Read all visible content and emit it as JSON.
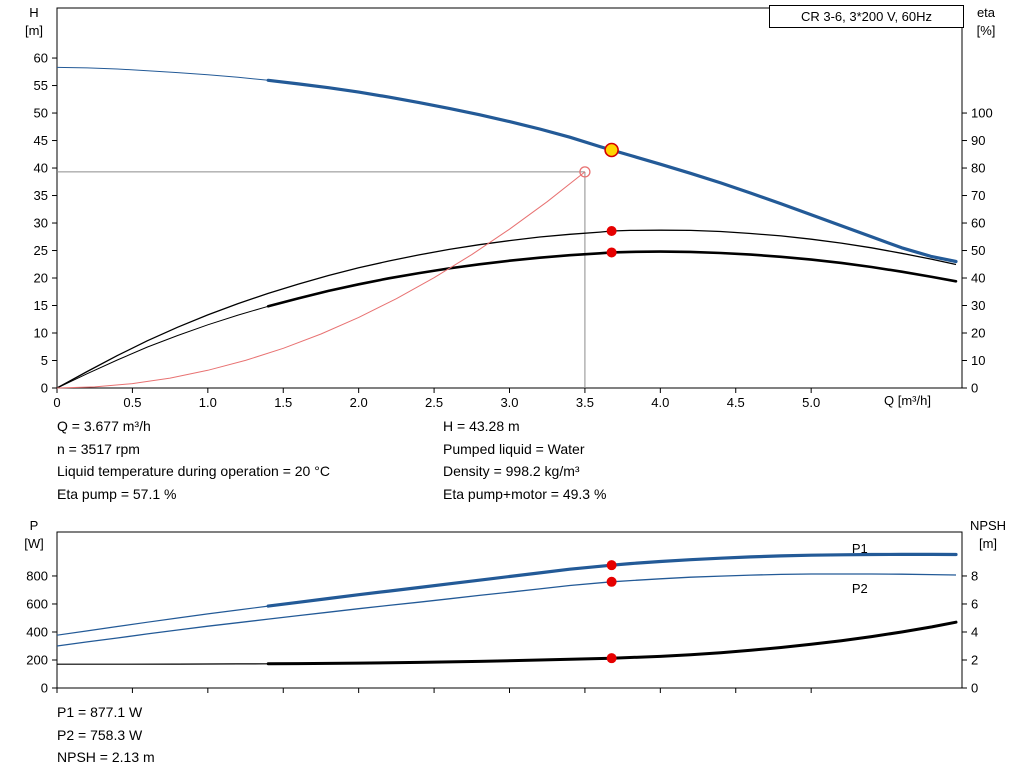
{
  "title_box": "CR 3-6, 3*200 V, 60Hz",
  "info_top": {
    "left": [
      "Q = 3.677 m³/h",
      "n = 3517 rpm",
      "Liquid temperature during operation = 20 °C",
      "Eta pump = 57.1 %"
    ],
    "right": [
      "H = 43.28 m",
      "Pumped liquid = Water",
      "Density = 998.2 kg/m³",
      "Eta pump+motor = 49.3 %"
    ]
  },
  "info_bottom": [
    "P1 = 877.1 W",
    "P2 = 758.3 W",
    "NPSH = 2.13 m"
  ],
  "marker_styles": {
    "duty": {
      "fill": "#ffd400",
      "stroke": "#d40000"
    },
    "dot": {
      "fill": "#e60000"
    },
    "open": {
      "stroke": "#e87272"
    }
  },
  "chart_data": [
    {
      "type": "line",
      "title": "CR 3-6, 3*200 V, 60Hz",
      "xlabel": "Q [m³/h]",
      "axis_labels": {
        "left": [
          "H",
          "[m]"
        ],
        "right": [
          "eta",
          "[%]"
        ]
      },
      "xlim": [
        0,
        6
      ],
      "ylim_left": [
        0,
        69.1
      ],
      "ylim_right": [
        0,
        138.2
      ],
      "xtick_values": [
        0,
        0.5,
        1,
        1.5,
        2,
        2.5,
        3,
        3.5,
        4,
        4.5,
        5
      ],
      "xtick_labels": [
        "0",
        "0.5",
        "1.0",
        "1.5",
        "2.0",
        "2.5",
        "3.0",
        "3.5",
        "4.0",
        "4.5",
        "5.0"
      ],
      "ytick_left": [
        0,
        5,
        10,
        15,
        20,
        25,
        30,
        35,
        40,
        45,
        50,
        55,
        60
      ],
      "ytick_right": [
        0,
        10,
        20,
        30,
        40,
        50,
        60,
        70,
        80,
        90,
        100
      ],
      "grid": false,
      "crosshair": {
        "x": 3.5,
        "y": 39.3,
        "color": "#8c8c8c"
      },
      "series": [
        {
          "name": "head-curve",
          "axis": "left",
          "color": "#235a97",
          "width": 3.2,
          "width_thin": 1,
          "split_q": 1.4,
          "points": [
            [
              0,
              58.3
            ],
            [
              0.2,
              58.2
            ],
            [
              0.4,
              58.0
            ],
            [
              0.6,
              57.7
            ],
            [
              0.8,
              57.35
            ],
            [
              1.0,
              56.95
            ],
            [
              1.2,
              56.5
            ],
            [
              1.4,
              55.95
            ],
            [
              1.6,
              55.3
            ],
            [
              1.8,
              54.6
            ],
            [
              2.0,
              53.8
            ],
            [
              2.2,
              52.9
            ],
            [
              2.4,
              51.9
            ],
            [
              2.6,
              50.85
            ],
            [
              2.8,
              49.7
            ],
            [
              3.0,
              48.45
            ],
            [
              3.2,
              47.1
            ],
            [
              3.4,
              45.6
            ],
            [
              3.6,
              43.9
            ],
            [
              3.677,
              43.28
            ],
            [
              3.8,
              42.3
            ],
            [
              4.0,
              40.7
            ],
            [
              4.2,
              39.05
            ],
            [
              4.4,
              37.3
            ],
            [
              4.6,
              35.45
            ],
            [
              4.8,
              33.5
            ],
            [
              5.0,
              31.5
            ],
            [
              5.2,
              29.5
            ],
            [
              5.4,
              27.5
            ],
            [
              5.6,
              25.5
            ],
            [
              5.8,
              23.9
            ],
            [
              5.96,
              23.0
            ]
          ]
        },
        {
          "name": "eta-pump-curve",
          "axis": "right",
          "color": "#000000",
          "width": 1.3,
          "points": [
            [
              0,
              0
            ],
            [
              0.2,
              6.0
            ],
            [
              0.4,
              11.8
            ],
            [
              0.6,
              17.2
            ],
            [
              0.8,
              22.1
            ],
            [
              1.0,
              26.6
            ],
            [
              1.2,
              30.7
            ],
            [
              1.4,
              34.4
            ],
            [
              1.6,
              37.8
            ],
            [
              1.8,
              40.9
            ],
            [
              2.0,
              43.7
            ],
            [
              2.2,
              46.2
            ],
            [
              2.4,
              48.4
            ],
            [
              2.6,
              50.4
            ],
            [
              2.8,
              52.1
            ],
            [
              3.0,
              53.6
            ],
            [
              3.2,
              54.9
            ],
            [
              3.4,
              55.9
            ],
            [
              3.6,
              56.7
            ],
            [
              3.677,
              57.1
            ],
            [
              3.8,
              57.3
            ],
            [
              4.0,
              57.4
            ],
            [
              4.2,
              57.3
            ],
            [
              4.4,
              56.9
            ],
            [
              4.6,
              56.2
            ],
            [
              4.8,
              55.3
            ],
            [
              5.0,
              54.1
            ],
            [
              5.2,
              52.7
            ],
            [
              5.4,
              51.0
            ],
            [
              5.6,
              49.0
            ],
            [
              5.8,
              46.8
            ],
            [
              5.96,
              44.9
            ]
          ]
        },
        {
          "name": "eta-pump-motor-curve",
          "axis": "right",
          "color": "#000000",
          "width": 2.6,
          "width_thin": 1,
          "split_q": 1.4,
          "points": [
            [
              0,
              0
            ],
            [
              0.2,
              5.2
            ],
            [
              0.4,
              10.2
            ],
            [
              0.6,
              14.9
            ],
            [
              0.8,
              19.1
            ],
            [
              1.0,
              23.0
            ],
            [
              1.2,
              26.5
            ],
            [
              1.4,
              29.7
            ],
            [
              1.6,
              32.6
            ],
            [
              1.8,
              35.3
            ],
            [
              2.0,
              37.7
            ],
            [
              2.2,
              39.9
            ],
            [
              2.4,
              41.8
            ],
            [
              2.6,
              43.5
            ],
            [
              2.8,
              45.0
            ],
            [
              3.0,
              46.3
            ],
            [
              3.2,
              47.4
            ],
            [
              3.4,
              48.3
            ],
            [
              3.6,
              49.0
            ],
            [
              3.677,
              49.3
            ],
            [
              3.8,
              49.5
            ],
            [
              4.0,
              49.6
            ],
            [
              4.2,
              49.5
            ],
            [
              4.4,
              49.1
            ],
            [
              4.6,
              48.5
            ],
            [
              4.8,
              47.7
            ],
            [
              5.0,
              46.7
            ],
            [
              5.2,
              45.5
            ],
            [
              5.4,
              44.0
            ],
            [
              5.6,
              42.3
            ],
            [
              5.8,
              40.4
            ],
            [
              5.96,
              38.8
            ]
          ]
        },
        {
          "name": "duty-parabola-curve",
          "axis": "left",
          "color": "#e87272",
          "width": 1,
          "points": [
            [
              0,
              0
            ],
            [
              0.25,
              0.2
            ],
            [
              0.5,
              0.8
            ],
            [
              0.75,
              1.8
            ],
            [
              1.0,
              3.21
            ],
            [
              1.25,
              5.01
            ],
            [
              1.5,
              7.22
            ],
            [
              1.75,
              9.82
            ],
            [
              2.0,
              12.83
            ],
            [
              2.25,
              16.24
            ],
            [
              2.5,
              20.05
            ],
            [
              2.75,
              24.26
            ],
            [
              3.0,
              28.87
            ],
            [
              3.25,
              33.88
            ],
            [
              3.5,
              39.3
            ]
          ]
        }
      ],
      "markers": [
        {
          "x": 3.5,
          "y": 39.3,
          "axis": "left",
          "style": "open"
        },
        {
          "x": 3.677,
          "y": 57.1,
          "axis": "right",
          "style": "dot"
        },
        {
          "x": 3.677,
          "y": 49.3,
          "axis": "right",
          "style": "dot"
        },
        {
          "x": 3.677,
          "y": 43.28,
          "axis": "left",
          "style": "duty"
        }
      ],
      "labels": []
    },
    {
      "type": "line",
      "title": "",
      "xlabel": "",
      "axis_labels": {
        "left": [
          "P",
          "[W]"
        ],
        "right": [
          "NPSH",
          "[m]"
        ]
      },
      "xlim": [
        0,
        6
      ],
      "ylim_left": [
        0,
        1114
      ],
      "ylim_right": [
        0,
        11.14
      ],
      "xtick_values": [
        0,
        0.5,
        1,
        1.5,
        2,
        2.5,
        3,
        3.5,
        4,
        4.5,
        5
      ],
      "xtick_labels": [],
      "ytick_left": [
        0,
        200,
        400,
        600,
        800
      ],
      "ytick_right": [
        0,
        2,
        4,
        6,
        8
      ],
      "grid": false,
      "series": [
        {
          "name": "p1-curve",
          "axis": "left",
          "color": "#235a97",
          "width": 3.2,
          "width_thin": 1.2,
          "split_q": 1.4,
          "points": [
            [
              0,
              377
            ],
            [
              0.2,
              408
            ],
            [
              0.4,
              439
            ],
            [
              0.6,
              470
            ],
            [
              0.8,
              500
            ],
            [
              1.0,
              529
            ],
            [
              1.2,
              557
            ],
            [
              1.4,
              585
            ],
            [
              1.6,
              612
            ],
            [
              1.8,
              639
            ],
            [
              2.0,
              666
            ],
            [
              2.2,
              692
            ],
            [
              2.4,
              718
            ],
            [
              2.6,
              744
            ],
            [
              2.8,
              770
            ],
            [
              3.0,
              796
            ],
            [
              3.2,
              822
            ],
            [
              3.4,
              848
            ],
            [
              3.677,
              877.1
            ],
            [
              3.8,
              888
            ],
            [
              4.0,
              903
            ],
            [
              4.2,
              916
            ],
            [
              4.4,
              927
            ],
            [
              4.6,
              936
            ],
            [
              4.8,
              943
            ],
            [
              5.0,
              948
            ],
            [
              5.2,
              951
            ],
            [
              5.4,
              953
            ],
            [
              5.6,
              954
            ],
            [
              5.8,
              954
            ],
            [
              5.96,
              953
            ]
          ]
        },
        {
          "name": "p2-curve",
          "axis": "left",
          "color": "#235a97",
          "width": 1.3,
          "points": [
            [
              0,
              300
            ],
            [
              0.2,
              329
            ],
            [
              0.4,
              357
            ],
            [
              0.6,
              386
            ],
            [
              0.8,
              414
            ],
            [
              1.0,
              441
            ],
            [
              1.2,
              466
            ],
            [
              1.4,
              492
            ],
            [
              1.6,
              517
            ],
            [
              1.8,
              541
            ],
            [
              2.0,
              566
            ],
            [
              2.2,
              590
            ],
            [
              2.4,
              613
            ],
            [
              2.6,
              637
            ],
            [
              2.8,
              661
            ],
            [
              3.0,
              684
            ],
            [
              3.2,
              708
            ],
            [
              3.4,
              732
            ],
            [
              3.677,
              758.3
            ],
            [
              3.8,
              767
            ],
            [
              4.0,
              780
            ],
            [
              4.2,
              791
            ],
            [
              4.4,
              799
            ],
            [
              4.6,
              806
            ],
            [
              4.8,
              811
            ],
            [
              5.0,
              814
            ],
            [
              5.2,
              814
            ],
            [
              5.4,
              814
            ],
            [
              5.6,
              813
            ],
            [
              5.8,
              810
            ],
            [
              5.96,
              807
            ]
          ]
        },
        {
          "name": "npsh-curve",
          "axis": "right",
          "color": "#000000",
          "width": 3,
          "width_thin": 1.2,
          "split_q": 1.4,
          "points": [
            [
              0,
              1.7
            ],
            [
              0.4,
              1.7
            ],
            [
              0.8,
              1.71
            ],
            [
              1.2,
              1.72
            ],
            [
              1.4,
              1.73
            ],
            [
              1.6,
              1.74
            ],
            [
              2.0,
              1.78
            ],
            [
              2.4,
              1.83
            ],
            [
              2.8,
              1.9
            ],
            [
              3.2,
              2.0
            ],
            [
              3.677,
              2.13
            ],
            [
              4.0,
              2.26
            ],
            [
              4.2,
              2.38
            ],
            [
              4.4,
              2.52
            ],
            [
              4.6,
              2.69
            ],
            [
              4.8,
              2.89
            ],
            [
              5.0,
              3.12
            ],
            [
              5.2,
              3.38
            ],
            [
              5.4,
              3.67
            ],
            [
              5.6,
              4.0
            ],
            [
              5.8,
              4.36
            ],
            [
              5.96,
              4.7
            ]
          ]
        }
      ],
      "markers": [
        {
          "x": 3.677,
          "y": 877.1,
          "axis": "left",
          "style": "dot"
        },
        {
          "x": 3.677,
          "y": 758.3,
          "axis": "left",
          "style": "dot"
        },
        {
          "x": 3.677,
          "y": 2.13,
          "axis": "right",
          "style": "dot"
        }
      ],
      "labels": [
        {
          "text": "P1",
          "x": 5.27,
          "y": 1000,
          "axis": "left",
          "color": "#235a97"
        },
        {
          "text": "P2",
          "x": 5.27,
          "y": 713,
          "axis": "left",
          "color": "#235a97"
        }
      ]
    }
  ]
}
